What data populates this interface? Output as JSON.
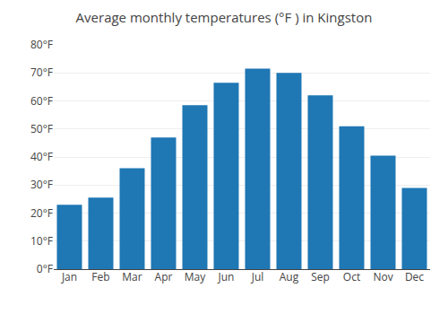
{
  "chart_data": {
    "type": "bar",
    "title": "Average monthly temperatures (°F ) in Kingston",
    "categories": [
      "Jan",
      "Feb",
      "Mar",
      "Apr",
      "May",
      "Jun",
      "Jul",
      "Aug",
      "Sep",
      "Oct",
      "Nov",
      "Dec"
    ],
    "values": [
      23,
      25.5,
      36,
      47,
      58.5,
      66.5,
      71.5,
      70,
      62,
      51,
      40.5,
      29
    ],
    "ylim": [
      0,
      80
    ],
    "yticks": [
      {
        "value": 0,
        "label": "0°F"
      },
      {
        "value": 10,
        "label": "10°F"
      },
      {
        "value": 20,
        "label": "20°F"
      },
      {
        "value": 30,
        "label": "30°F"
      },
      {
        "value": 40,
        "label": "40°F"
      },
      {
        "value": 50,
        "label": "50°F"
      },
      {
        "value": 60,
        "label": "60°F"
      },
      {
        "value": 70,
        "label": "70°F"
      },
      {
        "value": 80,
        "label": "80°F"
      }
    ],
    "grid": true
  }
}
